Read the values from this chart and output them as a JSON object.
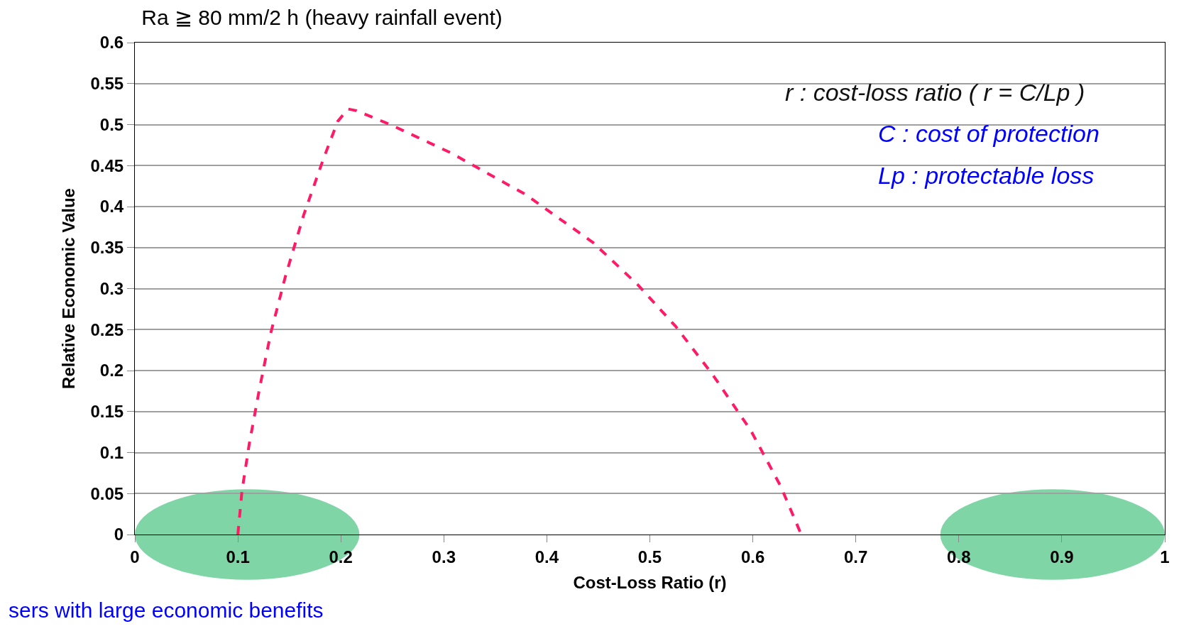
{
  "chart_data": {
    "type": "line",
    "title": "Ra ≧ 80 mm/2 h (heavy rainfall event)",
    "xlabel": "Cost-Loss Ratio (r)",
    "ylabel": "Relative Economic Value",
    "x": [
      0.1,
      0.104,
      0.111,
      0.121,
      0.132,
      0.146,
      0.164,
      0.183,
      0.197,
      0.207,
      0.215,
      0.248,
      0.306,
      0.379,
      0.445,
      0.488,
      0.525,
      0.561,
      0.598,
      0.627,
      0.647
    ],
    "series": [
      {
        "color": "#ff1a66",
        "values": [
          0,
          0.053,
          0.11,
          0.178,
          0.246,
          0.314,
          0.39,
          0.458,
          0.504,
          0.519,
          0.517,
          0.5,
          0.466,
          0.415,
          0.356,
          0.305,
          0.254,
          0.195,
          0.127,
          0.059,
          0
        ]
      }
    ],
    "xlim": [
      0,
      1
    ],
    "xticks": [
      0,
      0.1,
      0.2,
      0.3,
      0.4,
      0.5,
      0.6,
      0.7,
      0.8,
      0.9,
      1
    ],
    "ylim": [
      0,
      0.6
    ],
    "yticks": [
      0,
      0.05,
      0.1,
      0.15,
      0.2,
      0.25,
      0.3,
      0.35,
      0.4,
      0.45,
      0.5,
      0.55,
      0.6
    ],
    "grid": "y",
    "line_style": "dashed",
    "marker": "none",
    "annotations": [
      "r : cost-loss ratio ( r = C/Lp )",
      "C : cost of protection",
      "Lp : protectable loss",
      "sers with large economic benefits"
    ]
  }
}
